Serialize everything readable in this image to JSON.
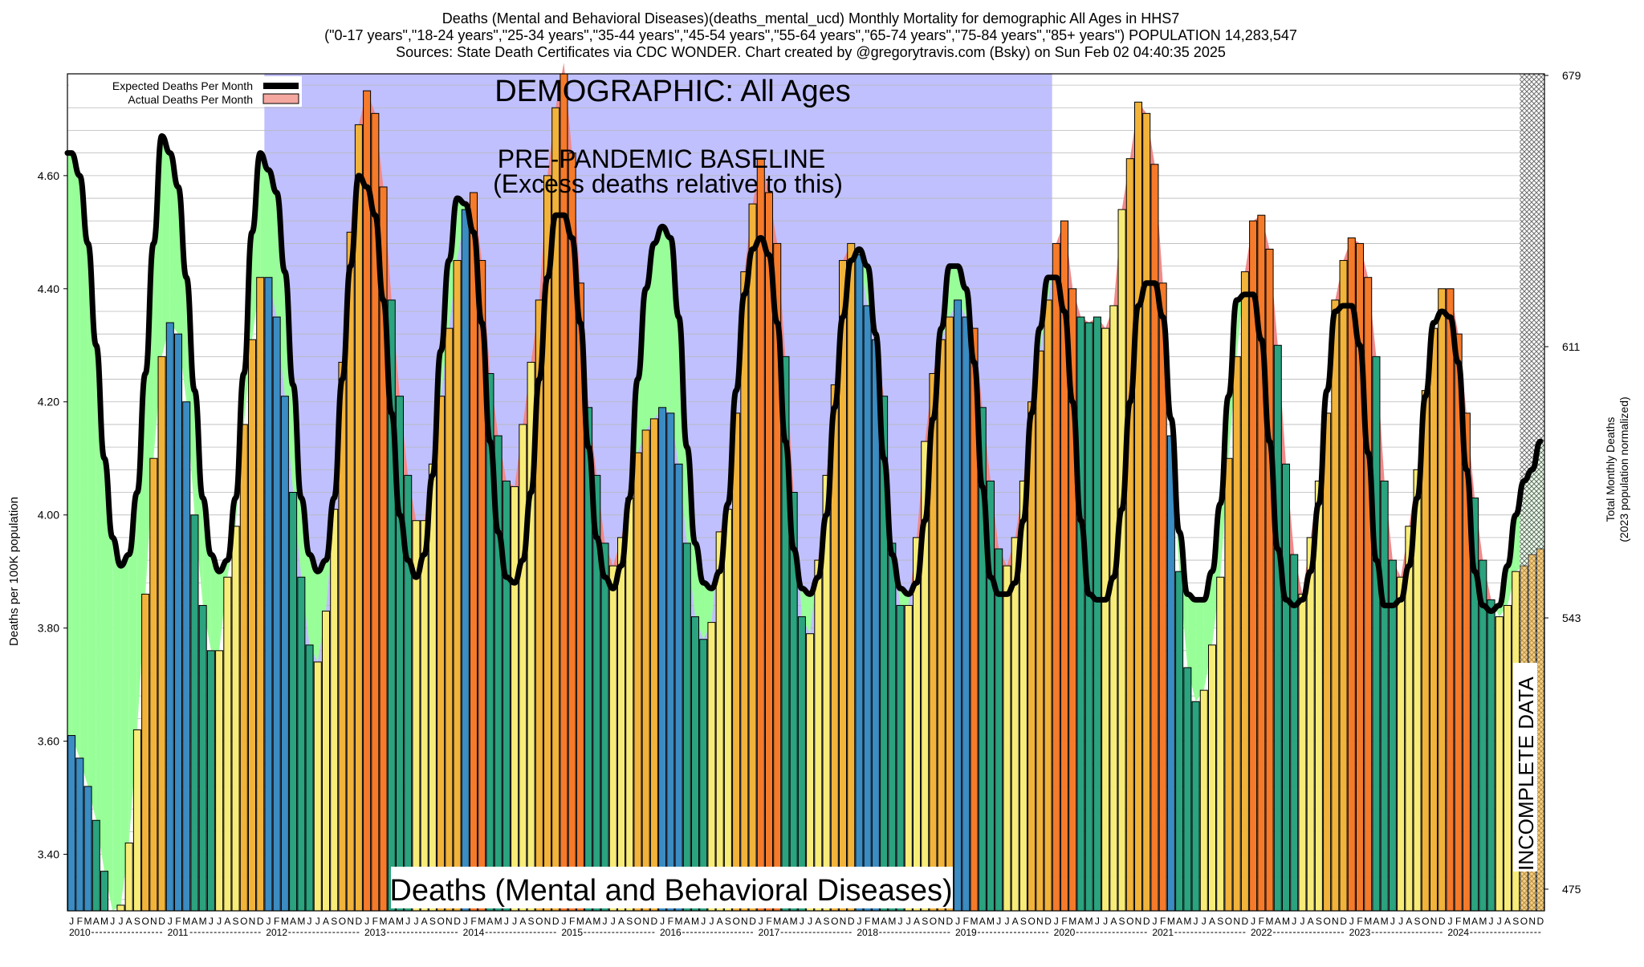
{
  "header": {
    "line1": "Deaths (Mental and Behavioral Diseases)(deaths_mental_ucd) Monthly Mortality for demographic All Ages in HHS7",
    "line2": "(\"0-17 years\",\"18-24 years\",\"25-34 years\",\"35-44 years\",\"45-54 years\",\"55-64 years\",\"65-74 years\",\"75-84 years\",\"85+ years\") POPULATION 14,283,547",
    "line3": "Sources: State Death Certificates via CDC WONDER.              Chart created by @gregorytravis.com (Bsky) on Sun Feb 02 04:40:35 2025"
  },
  "annotations": {
    "demographic": "DEMOGRAPHIC: All Ages",
    "baseline_line1": "PRE-PANDEMIC BASELINE",
    "baseline_line2": "(Excess deaths relative to this)",
    "bottom_title": "Deaths (Mental and Behavioral Diseases)",
    "incomplete": "INCOMPLETE DATA"
  },
  "legend": {
    "expected": "Expected Deaths Per Month",
    "actual": "Actual Deaths Per Month"
  },
  "axes": {
    "ylabel_left": "Deaths per 100K population",
    "ylabel_right_1": "Total Monthly Deaths",
    "ylabel_right_2": "(2023 population normalized)"
  },
  "colors": {
    "baseline_region": "#c0c0ff",
    "excess_fill": "#f08a8a",
    "deficit_fill": "#98ff98",
    "expected_line": "#000000",
    "winter_bar": "#3a8cc2",
    "spring_bar": "#2aa37e",
    "summer_bar": "#f8ec78",
    "autumn_bar": "#f2b33a",
    "excess_winter_bar": "#f57a2a"
  },
  "chart_data": {
    "type": "bar",
    "title": "Deaths (Mental and Behavioral Diseases)",
    "ylabel": "Deaths per 100K population",
    "ylim": [
      3.3,
      4.78
    ],
    "y_ticks": [
      3.4,
      3.6,
      3.8,
      4.0,
      4.2,
      4.4,
      4.6
    ],
    "y_tick_labels": [
      "3.40",
      "3.60",
      "3.80",
      "4.00",
      "4.20",
      "4.40",
      "4.60"
    ],
    "y2_ticks": [
      475,
      543,
      611,
      679
    ],
    "y2_tick_labels": [
      "475",
      "543",
      "611",
      "679"
    ],
    "month_letters": [
      "J",
      "F",
      "M",
      "A",
      "M",
      "J",
      "J",
      "A",
      "S",
      "O",
      "N",
      "D"
    ],
    "years": [
      "2010",
      "2011",
      "2012",
      "2013",
      "2014",
      "2015",
      "2016",
      "2017",
      "2018",
      "2019",
      "2020",
      "2021",
      "2022",
      "2023",
      "2024"
    ],
    "baseline_period": [
      "2012-01",
      "2019-12"
    ],
    "incomplete_from": "2024-10",
    "legend_position": "top-left",
    "grid": true,
    "series": [
      {
        "name": "Actual Deaths Per Month",
        "values": [
          3.61,
          3.57,
          3.52,
          3.46,
          3.37,
          3.3,
          3.31,
          3.42,
          3.62,
          3.86,
          4.1,
          4.28,
          4.34,
          4.32,
          4.2,
          4.0,
          3.84,
          3.76,
          3.76,
          3.89,
          3.98,
          4.16,
          4.31,
          4.42,
          4.42,
          4.35,
          4.21,
          4.04,
          3.89,
          3.77,
          3.74,
          3.83,
          4.01,
          4.27,
          4.5,
          4.69,
          4.75,
          4.71,
          4.58,
          4.38,
          4.21,
          4.07,
          3.99,
          3.99,
          4.09,
          4.21,
          4.33,
          4.45,
          4.54,
          4.57,
          4.45,
          4.25,
          4.14,
          4.06,
          4.05,
          4.16,
          4.27,
          4.38,
          4.6,
          4.72,
          4.8,
          4.64,
          4.41,
          4.19,
          4.07,
          3.95,
          3.91,
          3.96,
          4.03,
          4.11,
          4.15,
          4.17,
          4.19,
          4.18,
          4.09,
          3.95,
          3.82,
          3.78,
          3.81,
          3.97,
          4.01,
          4.18,
          4.43,
          4.55,
          4.63,
          4.57,
          4.48,
          4.28,
          4.04,
          3.82,
          3.79,
          3.92,
          4.07,
          4.23,
          4.45,
          4.48,
          4.46,
          4.37,
          4.31,
          4.21,
          3.95,
          3.84,
          3.84,
          3.96,
          4.13,
          4.25,
          4.31,
          4.35,
          4.38,
          4.35,
          4.33,
          4.19,
          4.06,
          3.94,
          3.91,
          3.96,
          4.06,
          4.2,
          4.29,
          4.38,
          4.48,
          4.52,
          4.4,
          4.35,
          4.34,
          4.35,
          4.33,
          4.37,
          4.54,
          4.63,
          4.73,
          4.71,
          4.62,
          4.41,
          4.14,
          3.9,
          3.73,
          3.67,
          3.69,
          3.77,
          3.89,
          4.1,
          4.28,
          4.43,
          4.52,
          4.53,
          4.47,
          4.3,
          4.09,
          3.93,
          3.86,
          3.96,
          4.06,
          4.18,
          4.38,
          4.45,
          4.49,
          4.48,
          4.42,
          4.28,
          4.06,
          3.92,
          3.89,
          3.98,
          4.08,
          4.22,
          4.33,
          4.4,
          4.4,
          4.32,
          4.18,
          4.03,
          3.92,
          3.85,
          3.82,
          3.84,
          3.9,
          3.91,
          3.93,
          3.94
        ]
      },
      {
        "name": "Expected Deaths Per Month",
        "values": [
          4.64,
          4.6,
          4.48,
          4.3,
          4.1,
          3.96,
          3.91,
          3.93,
          4.04,
          4.25,
          4.48,
          4.67,
          4.64,
          4.58,
          4.42,
          4.22,
          4.03,
          3.93,
          3.9,
          3.92,
          4.03,
          4.25,
          4.5,
          4.64,
          4.61,
          4.57,
          4.43,
          4.23,
          4.03,
          3.93,
          3.9,
          3.92,
          4.03,
          4.24,
          4.44,
          4.6,
          4.58,
          4.53,
          4.38,
          4.18,
          4.0,
          3.92,
          3.89,
          3.93,
          4.07,
          4.29,
          4.45,
          4.56,
          4.55,
          4.5,
          4.34,
          4.13,
          3.97,
          3.89,
          3.88,
          3.92,
          4.04,
          4.24,
          4.42,
          4.53,
          4.53,
          4.49,
          4.34,
          4.12,
          3.96,
          3.89,
          3.87,
          3.91,
          4.03,
          4.24,
          4.4,
          4.48,
          4.51,
          4.49,
          4.35,
          4.12,
          3.95,
          3.88,
          3.87,
          3.9,
          4.02,
          4.22,
          4.39,
          4.47,
          4.49,
          4.46,
          4.34,
          4.13,
          3.94,
          3.87,
          3.86,
          3.89,
          4.0,
          4.19,
          4.35,
          4.45,
          4.47,
          4.44,
          4.32,
          4.1,
          3.93,
          3.87,
          3.86,
          3.88,
          3.99,
          4.17,
          4.33,
          4.44,
          4.44,
          4.4,
          4.27,
          4.05,
          3.89,
          3.86,
          3.86,
          3.88,
          3.99,
          4.18,
          4.33,
          4.42,
          4.42,
          4.36,
          4.2,
          3.99,
          3.86,
          3.85,
          3.85,
          3.89,
          4.01,
          4.2,
          4.37,
          4.41,
          4.41,
          4.35,
          4.17,
          3.97,
          3.86,
          3.85,
          3.85,
          3.9,
          4.02,
          4.21,
          4.38,
          4.39,
          4.39,
          4.31,
          4.13,
          3.94,
          3.85,
          3.84,
          3.85,
          3.9,
          4.02,
          4.22,
          4.36,
          4.37,
          4.37,
          4.3,
          4.11,
          3.92,
          3.84,
          3.84,
          3.85,
          3.91,
          4.03,
          4.21,
          4.34,
          4.36,
          4.35,
          4.27,
          4.08,
          3.9,
          3.84,
          3.83,
          3.84,
          3.91,
          4.0,
          4.06,
          4.08,
          4.13
        ]
      }
    ]
  }
}
